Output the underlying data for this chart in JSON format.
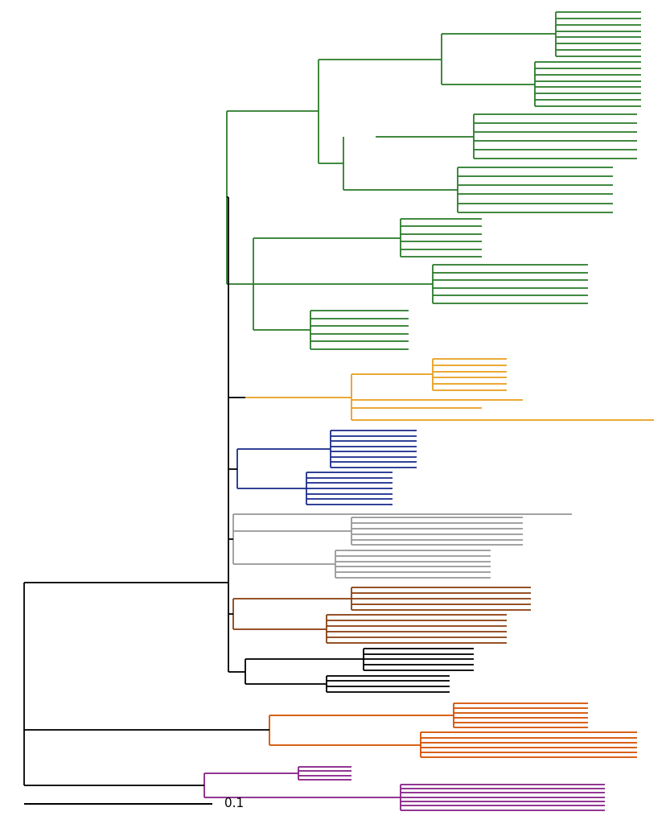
{
  "figsize": [
    8.33,
    10.24
  ],
  "dpi": 100,
  "bg_color": "#ffffff",
  "lw": 1.3,
  "colors": {
    "green": "#2d7d2d",
    "yellow": "#e8a020",
    "blue": "#1c2e8c",
    "gray": "#999999",
    "brown": "#8b4010",
    "black": "#000000",
    "orange": "#d45000",
    "purple": "#882288"
  },
  "scale_bar_label": "0.1",
  "xlim": [
    0,
    820
  ],
  "ylim": [
    0,
    1010
  ]
}
